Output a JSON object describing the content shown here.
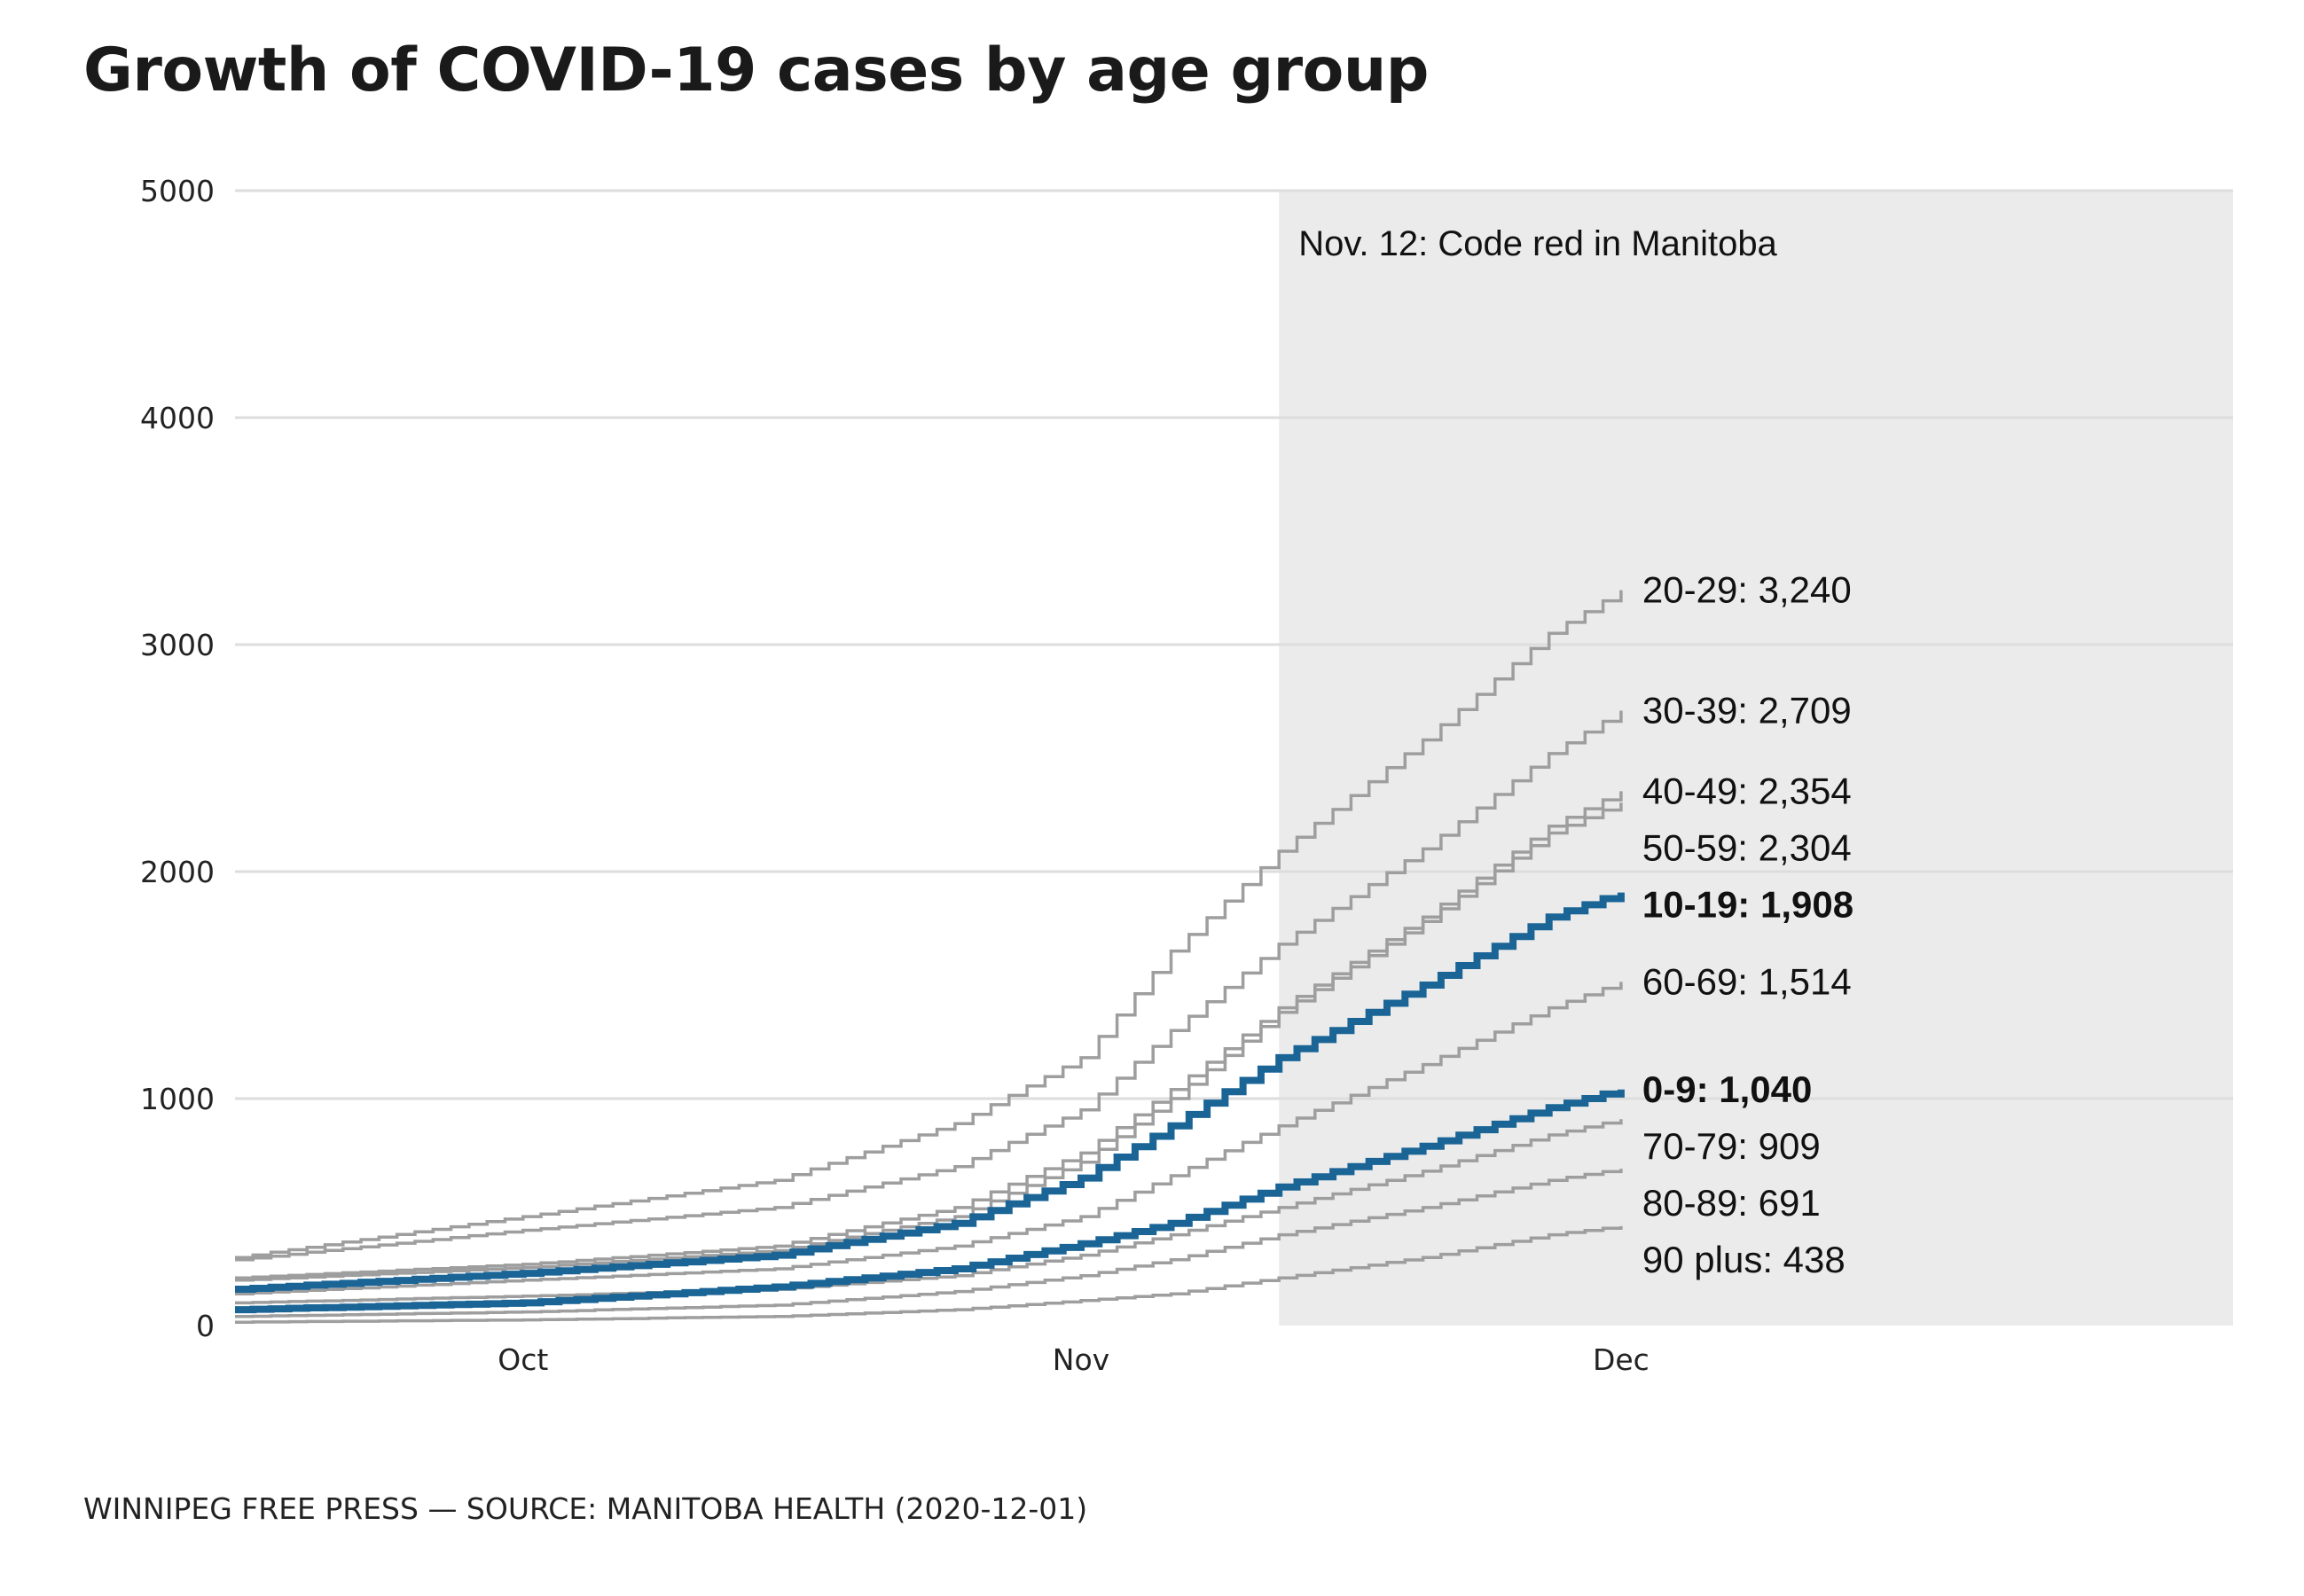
{
  "title": "Growth of COVID-19 cases by age group",
  "footer": "WINNIPEG FREE PRESS — SOURCE: MANITOBA HEALTH (2020-12-01)",
  "colors": {
    "highlight": "#1a6496",
    "muted": "#9e9e9e",
    "shade": "#ebebeb",
    "grid": "#dddddd"
  },
  "chart_data": {
    "type": "line",
    "step": true,
    "x_start": "2020-09-15",
    "x_end": "2020-12-01",
    "xlim": [
      "2020-09-15",
      "2021-01-04"
    ],
    "ylim": [
      0,
      5000
    ],
    "yticks": [
      "0",
      "1000",
      "2000",
      "3000",
      "4000",
      "5000"
    ],
    "xticks": [
      {
        "date": "2020-10-01",
        "label": "Oct"
      },
      {
        "date": "2020-11-01",
        "label": "Nov"
      },
      {
        "date": "2020-12-01",
        "label": "Dec"
      }
    ],
    "shaded_region": {
      "from": "2020-11-12",
      "label": "Nov. 12: Code red in Manitoba"
    },
    "grid": true,
    "series": [
      {
        "name": "20-29",
        "label": "20-29: 3,240",
        "highlight": false,
        "x": [
          "2020-09-15",
          "2020-10-01",
          "2020-10-15",
          "2020-10-25",
          "2020-11-01",
          "2020-11-06",
          "2020-11-12",
          "2020-11-20",
          "2020-11-27",
          "2020-12-01"
        ],
        "y": [
          300,
          480,
          640,
          890,
          1180,
          1650,
          2090,
          2580,
          3050,
          3240
        ]
      },
      {
        "name": "30-39",
        "label": "30-39: 2,709",
        "highlight": false,
        "x": [
          "2020-09-15",
          "2020-10-01",
          "2020-10-15",
          "2020-10-25",
          "2020-11-01",
          "2020-11-06",
          "2020-11-12",
          "2020-11-20",
          "2020-11-27",
          "2020-12-01"
        ],
        "y": [
          290,
          420,
          520,
          700,
          950,
          1300,
          1680,
          2100,
          2520,
          2709
        ]
      },
      {
        "name": "40-49",
        "label": "40-49: 2,354",
        "highlight": false,
        "x": [
          "2020-09-15",
          "2020-10-01",
          "2020-10-15",
          "2020-10-25",
          "2020-11-01",
          "2020-11-06",
          "2020-11-12",
          "2020-11-20",
          "2020-11-27",
          "2020-12-01"
        ],
        "y": [
          210,
          270,
          350,
          520,
          760,
          1040,
          1400,
          1800,
          2200,
          2354
        ]
      },
      {
        "name": "50-59",
        "label": "50-59: 2,304",
        "highlight": false,
        "x": [
          "2020-09-15",
          "2020-10-01",
          "2020-10-15",
          "2020-10-25",
          "2020-11-01",
          "2020-11-06",
          "2020-11-12",
          "2020-11-20",
          "2020-11-27",
          "2020-12-01"
        ],
        "y": [
          200,
          255,
          330,
          480,
          720,
          1000,
          1380,
          1780,
          2170,
          2304
        ]
      },
      {
        "name": "10-19",
        "label": "10-19: 1,908",
        "highlight": true,
        "x": [
          "2020-09-15",
          "2020-10-01",
          "2020-10-15",
          "2020-10-25",
          "2020-11-01",
          "2020-11-06",
          "2020-11-12",
          "2020-11-20",
          "2020-11-27",
          "2020-12-01"
        ],
        "y": [
          160,
          230,
          310,
          450,
          650,
          880,
          1180,
          1500,
          1800,
          1908
        ]
      },
      {
        "name": "60-69",
        "label": "60-69: 1,514",
        "highlight": false,
        "x": [
          "2020-09-15",
          "2020-10-01",
          "2020-10-15",
          "2020-10-25",
          "2020-11-01",
          "2020-11-06",
          "2020-11-12",
          "2020-11-20",
          "2020-11-27",
          "2020-12-01"
        ],
        "y": [
          140,
          200,
          250,
          350,
          480,
          660,
          880,
          1150,
          1400,
          1514
        ]
      },
      {
        "name": "0-9",
        "label": "0-9: 1,040",
        "highlight": true,
        "x": [
          "2020-09-15",
          "2020-10-01",
          "2020-10-15",
          "2020-10-25",
          "2020-11-01",
          "2020-11-06",
          "2020-11-12",
          "2020-11-20",
          "2020-11-27",
          "2020-12-01"
        ],
        "y": [
          70,
          100,
          170,
          250,
          360,
          450,
          610,
          790,
          960,
          1040
        ]
      },
      {
        "name": "70-79",
        "label": "70-79: 909",
        "highlight": false,
        "x": [
          "2020-09-15",
          "2020-10-01",
          "2020-10-15",
          "2020-10-25",
          "2020-11-01",
          "2020-11-06",
          "2020-11-12",
          "2020-11-20",
          "2020-11-27",
          "2020-12-01"
        ],
        "y": [
          100,
          130,
          160,
          220,
          310,
          400,
          520,
          680,
          840,
          909
        ]
      },
      {
        "name": "80-89",
        "label": "80-89: 691",
        "highlight": false,
        "x": [
          "2020-09-15",
          "2020-10-01",
          "2020-10-15",
          "2020-10-25",
          "2020-11-01",
          "2020-11-06",
          "2020-11-12",
          "2020-11-20",
          "2020-11-27",
          "2020-12-01"
        ],
        "y": [
          40,
          60,
          90,
          150,
          220,
          290,
          400,
          520,
          640,
          691
        ]
      },
      {
        "name": "90 plus",
        "label": "90 plus: 438",
        "highlight": false,
        "x": [
          "2020-09-15",
          "2020-10-01",
          "2020-10-15",
          "2020-10-25",
          "2020-11-01",
          "2020-11-06",
          "2020-11-12",
          "2020-11-20",
          "2020-11-27",
          "2020-12-01"
        ],
        "y": [
          15,
          25,
          40,
          70,
          110,
          140,
          210,
          300,
          400,
          438
        ]
      }
    ]
  }
}
